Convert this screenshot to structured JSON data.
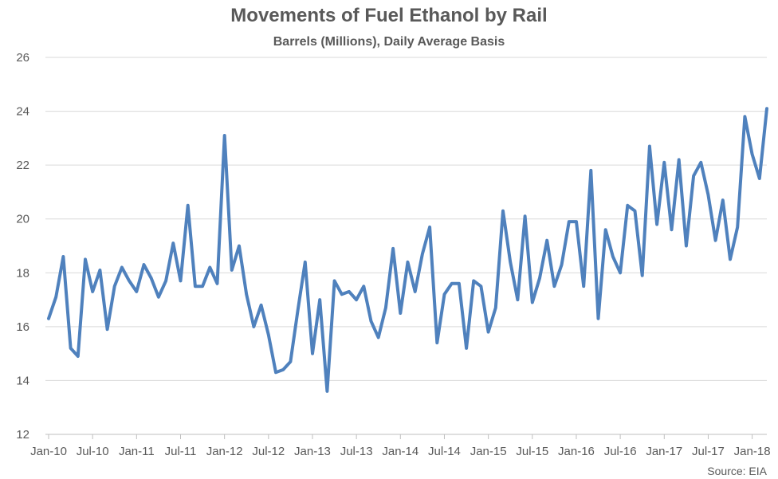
{
  "chart_data": {
    "type": "line",
    "title": "Movements of Fuel Ethanol by Rail",
    "subtitle": "Barrels (Millions), Daily Average Basis",
    "source": "Source: EIA",
    "xlabel": "",
    "ylabel": "",
    "ylim": [
      12,
      26
    ],
    "yticks": [
      12,
      14,
      16,
      18,
      20,
      22,
      24,
      26
    ],
    "x_tick_labels": [
      "Jan-10",
      "Jul-10",
      "Jan-11",
      "Jul-11",
      "Jan-12",
      "Jul-12",
      "Jan-13",
      "Jul-13",
      "Jan-14",
      "Jul-14",
      "Jan-15",
      "Jul-15",
      "Jan-16",
      "Jul-16",
      "Jan-17",
      "Jul-17",
      "Jan-18"
    ],
    "grid": true,
    "line_color": "#4f81bd",
    "series": [
      {
        "values": [
          16.3,
          17.1,
          18.6,
          15.2,
          14.9,
          18.5,
          17.3,
          18.1,
          15.9,
          17.5,
          18.2,
          17.7,
          17.3,
          18.3,
          17.8,
          17.1,
          17.7,
          19.1,
          17.7,
          20.5,
          17.5,
          17.5,
          18.2,
          17.6,
          23.1,
          18.1,
          19.0,
          17.2,
          16.0,
          16.8,
          15.7,
          14.3,
          14.4,
          14.7,
          16.6,
          18.4,
          15.0,
          17.0,
          13.6,
          17.7,
          17.2,
          17.3,
          17.0,
          17.5,
          16.2,
          15.6,
          16.7,
          18.9,
          16.5,
          18.4,
          17.3,
          18.7,
          19.7,
          15.4,
          17.2,
          17.6,
          17.6,
          15.2,
          17.7,
          17.5,
          15.8,
          16.7,
          20.3,
          18.4,
          17.0,
          20.1,
          16.9,
          17.8,
          19.2,
          17.5,
          18.3,
          19.9,
          19.9,
          17.5,
          21.8,
          16.3,
          19.6,
          18.6,
          18.0,
          20.5,
          20.3,
          17.9,
          22.7,
          19.8,
          22.1,
          19.6,
          22.2,
          19.0,
          21.6,
          22.1,
          20.9,
          19.2,
          20.7,
          18.5,
          19.7,
          23.8,
          22.4,
          21.5,
          24.1
        ]
      }
    ]
  }
}
